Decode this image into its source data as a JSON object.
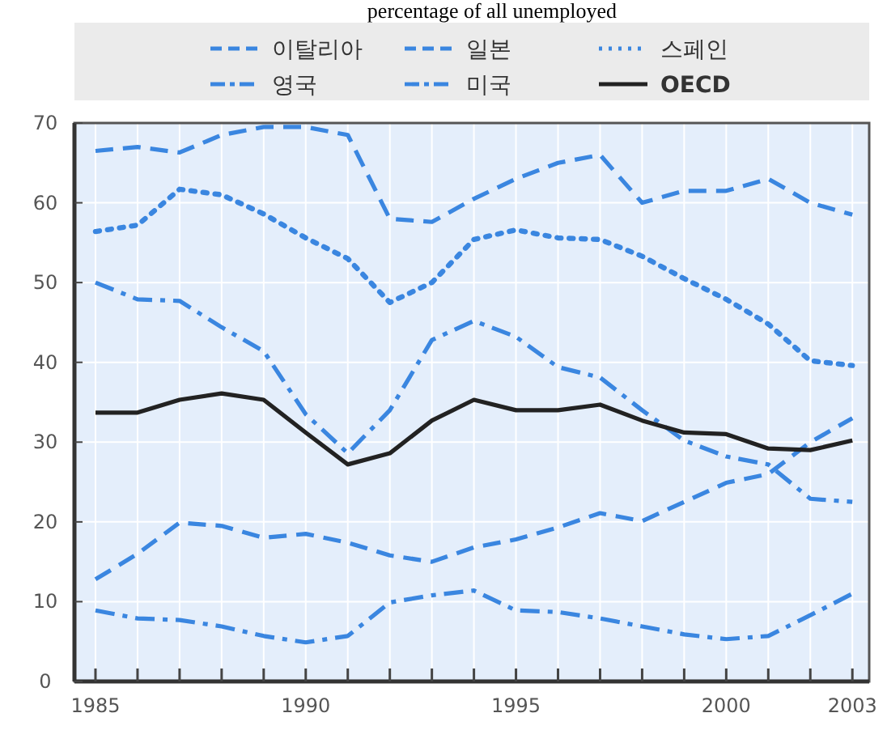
{
  "chart_data": {
    "type": "line",
    "title": "percentage of all unemployed",
    "x": [
      1985,
      1986,
      1987,
      1988,
      1989,
      1990,
      1991,
      1992,
      1993,
      1994,
      1995,
      1996,
      1997,
      1998,
      1999,
      2000,
      2001,
      2002,
      2003
    ],
    "series": [
      {
        "name": "이탈리아",
        "color": "#3a86e0",
        "line_style": "dashed",
        "values": [
          66.5,
          67,
          66.3,
          68.5,
          69.5,
          69.5,
          68.5,
          58,
          57.6,
          60.5,
          63,
          65,
          66,
          60,
          61.5,
          61.5,
          63,
          60,
          58.5
        ]
      },
      {
        "name": "일본",
        "color": "#3a86e0",
        "line_style": "dashed",
        "values": [
          12.8,
          16,
          19.9,
          19.5,
          18,
          18.5,
          17.4,
          15.8,
          15,
          16.8,
          17.8,
          19.3,
          21.1,
          20.1,
          22.5,
          24.9,
          26,
          30,
          33
        ]
      },
      {
        "name": "스페인",
        "color": "#3a86e0",
        "line_style": "dotted",
        "values": [
          56.4,
          57.2,
          61.7,
          61,
          58.6,
          55.6,
          53,
          47.5,
          50,
          55.4,
          56.6,
          55.6,
          55.4,
          53.3,
          50.5,
          47.9,
          44.8,
          40.2,
          39.6
        ]
      },
      {
        "name": "영국",
        "color": "#3a86e0",
        "line_style": "dashdot",
        "values": [
          50,
          47.9,
          47.7,
          44.4,
          41.4,
          33.5,
          28.6,
          34,
          42.8,
          45.2,
          43.2,
          39.4,
          38.1,
          34,
          30.2,
          28.2,
          27.2,
          22.9,
          22.5
        ]
      },
      {
        "name": "미국",
        "color": "#3a86e0",
        "line_style": "dashdot",
        "values": [
          8.9,
          7.9,
          7.7,
          6.9,
          5.7,
          4.9,
          5.7,
          9.9,
          10.8,
          11.4,
          8.9,
          8.7,
          7.9,
          6.9,
          5.9,
          5.3,
          5.7,
          8.3,
          11
        ]
      },
      {
        "name": "OECD",
        "color": "#222222",
        "line_style": "solid",
        "values": [
          33.7,
          33.7,
          35.3,
          36.1,
          35.3,
          31.2,
          27.2,
          28.6,
          32.7,
          35.3,
          34,
          34,
          34.7,
          32.7,
          31.2,
          31,
          29.2,
          29,
          30.2
        ]
      }
    ],
    "xlim": [
      1984.5,
      2003.4
    ],
    "xticks": [
      1985,
      {
        "value": 1986,
        "label": null
      },
      {
        "value": 1987,
        "label": null
      },
      {
        "value": 1988,
        "label": null
      },
      {
        "value": 1989,
        "label": null
      },
      1990,
      {
        "value": 1991,
        "label": null
      },
      {
        "value": 1992,
        "label": null
      },
      {
        "value": 1993,
        "label": null
      },
      {
        "value": 1994,
        "label": null
      },
      1995,
      {
        "value": 1996,
        "label": null
      },
      {
        "value": 1997,
        "label": null
      },
      {
        "value": 1998,
        "label": null
      },
      {
        "value": 1999,
        "label": null
      },
      2000,
      {
        "value": 2001,
        "label": null
      },
      {
        "value": 2002,
        "label": null
      },
      2003
    ],
    "ylim": [
      0,
      70
    ],
    "yticks": [
      0,
      10,
      20,
      30,
      40,
      50,
      60,
      70
    ],
    "grid": true,
    "legend": "top"
  }
}
